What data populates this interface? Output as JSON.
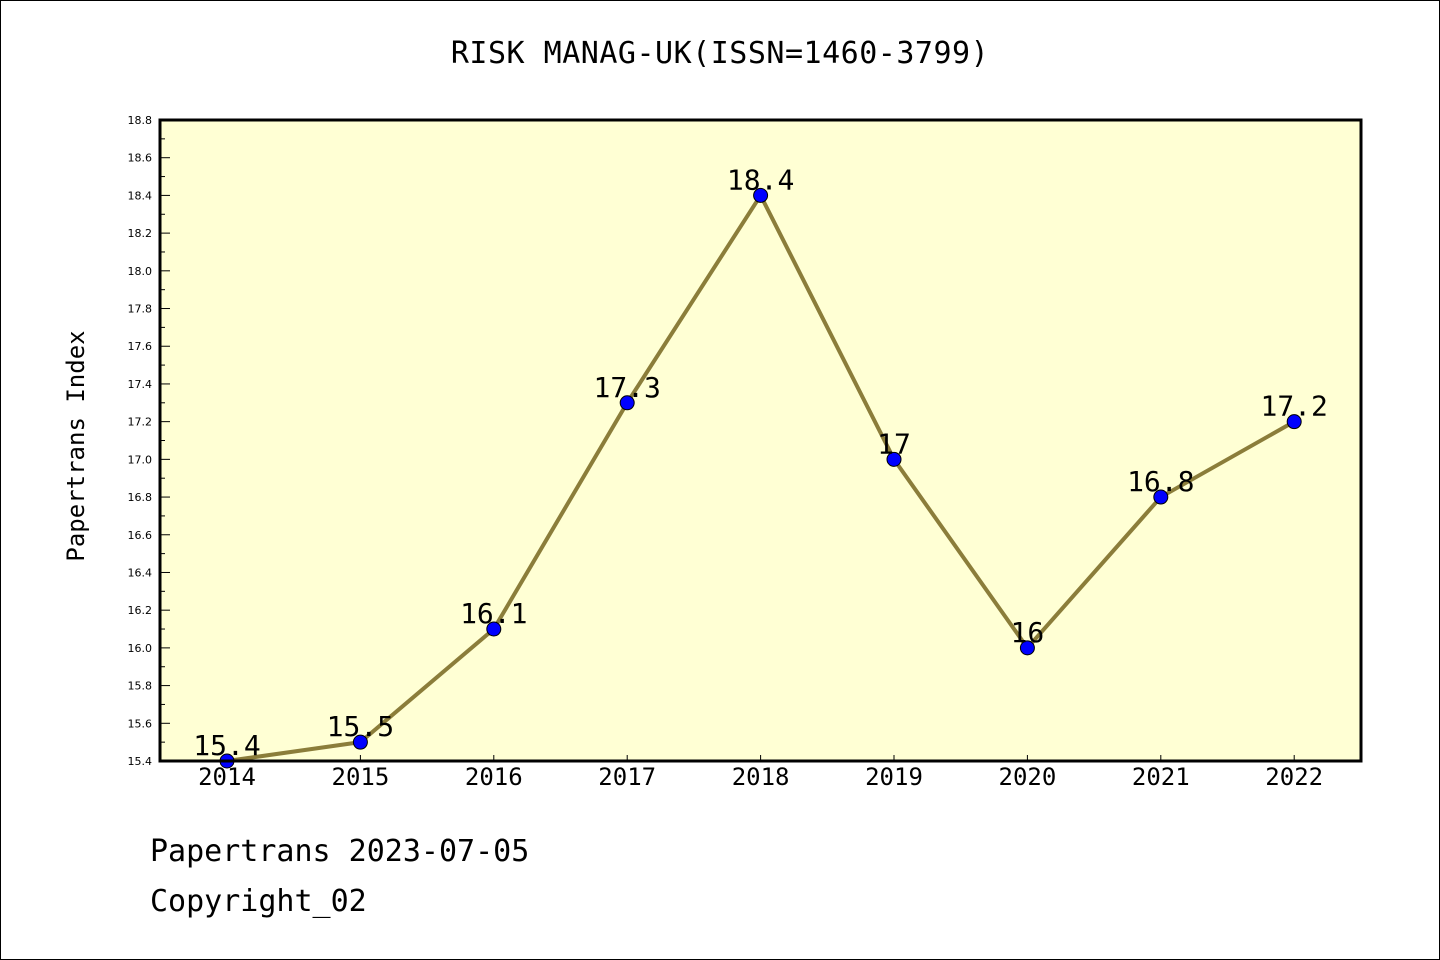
{
  "chart_data": {
    "type": "line",
    "title": "RISK MANAG-UK(ISSN=1460-3799)",
    "xlabel": "",
    "ylabel": "Papertrans Index",
    "categories": [
      "2014",
      "2015",
      "2016",
      "2017",
      "2018",
      "2019",
      "2020",
      "2021",
      "2022"
    ],
    "values": [
      15.4,
      15.5,
      16.1,
      17.3,
      18.4,
      17.0,
      16.0,
      16.8,
      17.2
    ],
    "data_labels": [
      "15.4",
      "15.5",
      "16.1",
      "17.3",
      "18.4",
      "17",
      "16",
      "16.8",
      "17.2"
    ],
    "ylim": [
      15.4,
      18.8
    ],
    "yticks": [
      "15.4",
      "15.6",
      "15.8",
      "16.0",
      "16.2",
      "16.4",
      "16.6",
      "16.8",
      "17.0",
      "17.2",
      "17.4",
      "17.6",
      "17.8",
      "18.0",
      "18.2",
      "18.4",
      "18.6",
      "18.8"
    ],
    "grid": false,
    "colors": {
      "line": "#8b7d3a",
      "marker": "#0000ff",
      "plot_bg": "#ffffd4"
    }
  },
  "footer": {
    "line1": "Papertrans 2023-07-05",
    "line2": "Copyright_02"
  }
}
